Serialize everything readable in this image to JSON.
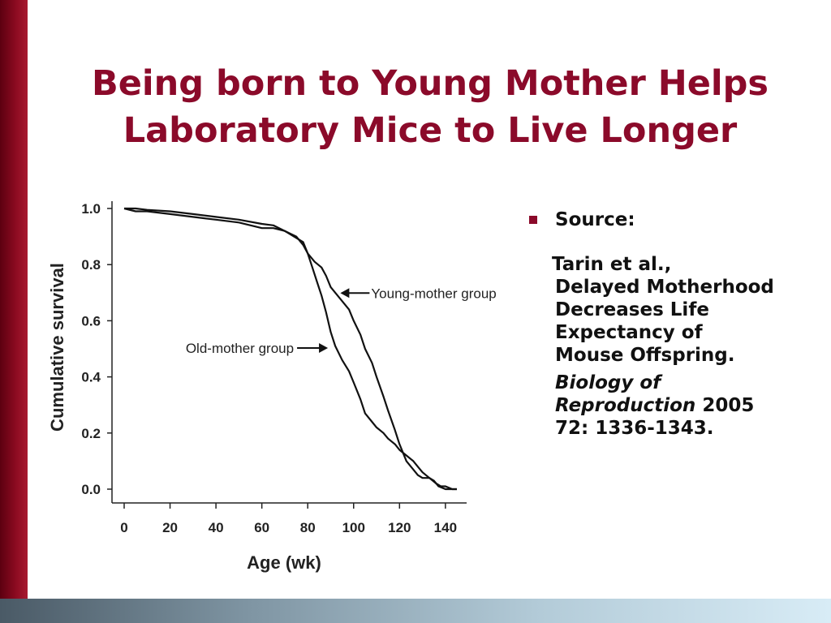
{
  "slide": {
    "title_line1": "Being born to Young Mother Helps",
    "title_line2": "Laboratory Mice to Live Longer",
    "title_color": "#8b0a2a"
  },
  "source": {
    "heading": "Source:",
    "author": "Tarin et al.,",
    "title_lines": [
      "Delayed Motherhood",
      "Decreases Life",
      "Expectancy of",
      "Mouse Offspring."
    ],
    "journal_lines": [
      "Biology of",
      "Reproduction"
    ],
    "year": "2005",
    "volume_pages": "72: 1336-1343."
  },
  "chart_data": {
    "type": "line",
    "xlabel": "Age (wk)",
    "ylabel": "Cumulative survival",
    "xlim": [
      0,
      145
    ],
    "ylim": [
      0,
      1.0
    ],
    "x_ticks": [
      "0",
      "20",
      "40",
      "60",
      "80",
      "100",
      "120",
      "140"
    ],
    "y_ticks": [
      "1.0",
      "0.8",
      "0.6",
      "0.4",
      "0.2",
      "0.0"
    ],
    "grid": false,
    "legend": "none",
    "annotations": [
      {
        "text": "Young-mother group",
        "points_to_series": "young"
      },
      {
        "text": "Old-mother group",
        "points_to_series": "old"
      }
    ],
    "series": [
      {
        "key": "young",
        "x": [
          0,
          5,
          10,
          20,
          30,
          40,
          50,
          60,
          65,
          70,
          75,
          78,
          80,
          83,
          86,
          88,
          90,
          92,
          95,
          98,
          100,
          103,
          105,
          108,
          110,
          113,
          115,
          118,
          120,
          123,
          126,
          128,
          130,
          133,
          135,
          137,
          140,
          143,
          145
        ],
        "y": [
          1.0,
          1.0,
          0.995,
          0.99,
          0.98,
          0.97,
          0.96,
          0.945,
          0.94,
          0.92,
          0.895,
          0.88,
          0.84,
          0.81,
          0.79,
          0.76,
          0.72,
          0.7,
          0.67,
          0.64,
          0.6,
          0.55,
          0.5,
          0.45,
          0.4,
          0.33,
          0.28,
          0.21,
          0.16,
          0.1,
          0.07,
          0.05,
          0.04,
          0.04,
          0.03,
          0.01,
          0.0,
          0.0,
          0.0
        ]
      },
      {
        "key": "old",
        "x": [
          0,
          5,
          10,
          20,
          30,
          40,
          50,
          60,
          65,
          70,
          75,
          78,
          80,
          82,
          84,
          86,
          88,
          90,
          92,
          95,
          98,
          100,
          103,
          105,
          108,
          110,
          113,
          115,
          118,
          120,
          123,
          126,
          128,
          130,
          133,
          136,
          138,
          140,
          143,
          145
        ],
        "y": [
          1.0,
          0.99,
          0.99,
          0.98,
          0.97,
          0.96,
          0.95,
          0.93,
          0.93,
          0.92,
          0.9,
          0.87,
          0.84,
          0.79,
          0.74,
          0.69,
          0.63,
          0.56,
          0.51,
          0.46,
          0.42,
          0.38,
          0.32,
          0.27,
          0.24,
          0.22,
          0.2,
          0.18,
          0.16,
          0.14,
          0.12,
          0.1,
          0.08,
          0.06,
          0.04,
          0.02,
          0.01,
          0.01,
          0.0,
          0.0
        ]
      }
    ]
  }
}
